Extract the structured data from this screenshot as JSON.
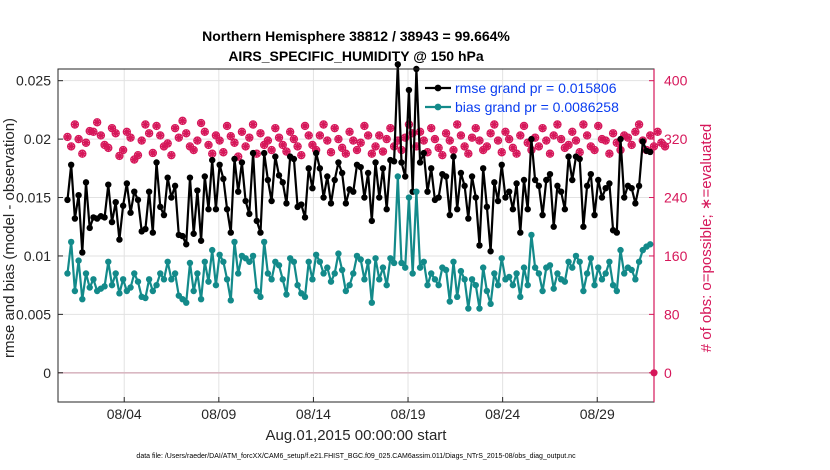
{
  "chart_data": {
    "type": "line",
    "title": "Northern Hemisphere 38812 / 38943 = 99.664%",
    "subtitle": "AIRS_SPECIFIC_HUMIDITY @ 150 hPa",
    "xlabel": "Aug.01,2015 00:00:00 start",
    "ylabel": "rmse and bias (model - observation)",
    "ylabel_right": "# of obs: o=possible; ∗=evaluated",
    "xlim": [
      0.5,
      32.0
    ],
    "ylim": [
      -0.0025,
      0.026
    ],
    "ylim_right": [
      -40,
      416
    ],
    "x_ticks": [
      {
        "x": 4,
        "label": "08/04"
      },
      {
        "x": 9,
        "label": "08/09"
      },
      {
        "x": 14,
        "label": "08/14"
      },
      {
        "x": 19,
        "label": "08/19"
      },
      {
        "x": 24,
        "label": "08/24"
      },
      {
        "x": 29,
        "label": "08/29"
      }
    ],
    "y_ticks": [
      {
        "v": 0,
        "label": "0"
      },
      {
        "v": 0.005,
        "label": "0.005"
      },
      {
        "v": 0.01,
        "label": "0.01"
      },
      {
        "v": 0.015,
        "label": "0.015"
      },
      {
        "v": 0.02,
        "label": "0.02"
      },
      {
        "v": 0.025,
        "label": "0.025"
      }
    ],
    "y_ticks_right": [
      {
        "v": 0,
        "label": "0"
      },
      {
        "v": 80,
        "label": "80"
      },
      {
        "v": 160,
        "label": "160"
      },
      {
        "v": 240,
        "label": "240"
      },
      {
        "v": 320,
        "label": "320"
      },
      {
        "v": 400,
        "label": "400"
      }
    ],
    "grid": true,
    "legend_position": "top-right",
    "series": [
      {
        "name": "rmse grand pr = 0.015806",
        "color": "#000000",
        "values": [
          0.0148,
          0.0178,
          0.0132,
          0.0152,
          0.0103,
          0.0163,
          0.0124,
          0.0133,
          0.0132,
          0.0134,
          0.0133,
          0.0161,
          0.0129,
          0.0146,
          0.0114,
          0.0143,
          0.0162,
          0.0137,
          0.0155,
          0.0148,
          0.0121,
          0.0123,
          0.0155,
          0.012,
          0.018,
          0.0142,
          0.0135,
          0.0167,
          0.015,
          0.016,
          0.0118,
          0.0117,
          0.011,
          0.0167,
          0.0119,
          0.0156,
          0.0113,
          0.0168,
          0.014,
          0.0182,
          0.014,
          0.0178,
          0.0166,
          0.014,
          0.012,
          0.0183,
          0.0155,
          0.018,
          0.0147,
          0.0136,
          0.0188,
          0.013,
          0.012,
          0.0188,
          0.0165,
          0.0147,
          0.0185,
          0.0169,
          0.0163,
          0.0145,
          0.0185,
          0.0183,
          0.0142,
          0.0144,
          0.0133,
          0.0175,
          0.0158,
          0.0188,
          0.0175,
          0.015,
          0.0168,
          0.0145,
          0.0165,
          0.018,
          0.0171,
          0.0145,
          0.0157,
          0.0155,
          0.0178,
          0.0176,
          0.015,
          0.0171,
          0.013,
          0.018,
          0.015,
          0.0175,
          0.014,
          0.0182,
          0.0181,
          0.0264,
          0.018,
          0.0168,
          0.0242,
          0.0155,
          0.026,
          0.018,
          0.0188,
          0.0155,
          0.0175,
          0.0148,
          0.015,
          0.017,
          0.0168,
          0.0135,
          0.0185,
          0.014,
          0.0171,
          0.016,
          0.0132,
          0.0168,
          0.015,
          0.0109,
          0.0175,
          0.0142,
          0.0104,
          0.0163,
          0.0147,
          0.0178,
          0.015,
          0.0155,
          0.014,
          0.0162,
          0.012,
          0.0165,
          0.014,
          0.02,
          0.0165,
          0.016,
          0.0135,
          0.0165,
          0.017,
          0.0125,
          0.016,
          0.0155,
          0.014,
          0.0185,
          0.0165,
          0.0185,
          0.0183,
          0.0125,
          0.016,
          0.017,
          0.0135,
          0.0165,
          0.015,
          0.0158,
          0.0162,
          0.0122,
          0.012,
          0.02,
          0.015,
          0.016,
          0.0158,
          0.0145,
          0.016,
          0.0198,
          0.019,
          0.0189
        ]
      },
      {
        "name": "bias grand pr = 0.0086258",
        "color": "#138a8a",
        "values": [
          0.0085,
          0.0112,
          0.007,
          0.0096,
          0.0063,
          0.0085,
          0.0073,
          0.008,
          0.007,
          0.0072,
          0.0074,
          0.0095,
          0.0075,
          0.0085,
          0.0068,
          0.008,
          0.007,
          0.0073,
          0.0085,
          0.0078,
          0.0065,
          0.0064,
          0.008,
          0.007,
          0.0075,
          0.0085,
          0.008,
          0.0095,
          0.008,
          0.0085,
          0.0066,
          0.0063,
          0.006,
          0.0094,
          0.007,
          0.0085,
          0.0063,
          0.0095,
          0.0078,
          0.0105,
          0.0075,
          0.0101,
          0.0095,
          0.008,
          0.0062,
          0.0112,
          0.0085,
          0.01,
          0.0098,
          0.0095,
          0.01,
          0.007,
          0.0065,
          0.0112,
          0.0085,
          0.008,
          0.0095,
          0.0092,
          0.008,
          0.0067,
          0.0098,
          0.0095,
          0.0075,
          0.0068,
          0.0065,
          0.0095,
          0.008,
          0.0101,
          0.0095,
          0.0085,
          0.009,
          0.0078,
          0.0085,
          0.0102,
          0.0088,
          0.007,
          0.0075,
          0.0085,
          0.01,
          0.0097,
          0.008,
          0.0095,
          0.006,
          0.0098,
          0.008,
          0.009,
          0.0075,
          0.0098,
          0.0094,
          0.0168,
          0.0094,
          0.009,
          0.015,
          0.0085,
          0.0155,
          0.009,
          0.0095,
          0.0075,
          0.0085,
          0.008,
          0.0075,
          0.009,
          0.0088,
          0.0061,
          0.0095,
          0.0065,
          0.0087,
          0.008,
          0.0055,
          0.008,
          0.0075,
          0.0055,
          0.009,
          0.007,
          0.0059,
          0.0085,
          0.0075,
          0.0098,
          0.008,
          0.0082,
          0.0075,
          0.0085,
          0.0065,
          0.009,
          0.0075,
          0.0118,
          0.009,
          0.0085,
          0.007,
          0.009,
          0.0092,
          0.0072,
          0.0085,
          0.008,
          0.0078,
          0.0095,
          0.009,
          0.01,
          0.0095,
          0.007,
          0.0085,
          0.0098,
          0.0075,
          0.009,
          0.008,
          0.0085,
          0.0095,
          0.0075,
          0.007,
          0.0105,
          0.0085,
          0.009,
          0.0088,
          0.008,
          0.0095,
          0.0105,
          0.0108,
          0.011
        ]
      },
      {
        "name": "obs possible",
        "color": "#d6175a",
        "axis": "right",
        "values": [
          323,
          310,
          340,
          320,
          300,
          315,
          331,
          330,
          343,
          325,
          312,
          308,
          335,
          328,
          297,
          305,
          330,
          322,
          292,
          298,
          318,
          340,
          328,
          301,
          338,
          325,
          310,
          314,
          298,
          335,
          322,
          345,
          328,
          310,
          305,
          318,
          342,
          330,
          312,
          300,
          325,
          318,
          302,
          338,
          324,
          315,
          296,
          330,
          310,
          322,
          340,
          300,
          328,
          312,
          318,
          305,
          335,
          322,
          312,
          303,
          330,
          320,
          310,
          298,
          338,
          325,
          312,
          305,
          325,
          340,
          318,
          302,
          335,
          320,
          308,
          300,
          330,
          318,
          305,
          315,
          338,
          325,
          300,
          310,
          325,
          303,
          320,
          335,
          310,
          318,
          305,
          322,
          340,
          328,
          310,
          330,
          318,
          302,
          335,
          320,
          308,
          298,
          328,
          318,
          305,
          340,
          325,
          310,
          300,
          322,
          335,
          318,
          305,
          310,
          328,
          340,
          318,
          302,
          330,
          320,
          308,
          300,
          325,
          338,
          315,
          305,
          322,
          310,
          335,
          318,
          300,
          325,
          340,
          320,
          308,
          312,
          330,
          318,
          302,
          340,
          325,
          310,
          305,
          338,
          320,
          318,
          300,
          328,
          315,
          305,
          325,
          322,
          312,
          330,
          340,
          318,
          305,
          325,
          310,
          330,
          315,
          310
        ]
      },
      {
        "name": "obs evaluated",
        "color": "#d6175a",
        "axis": "right",
        "values": [
          323,
          310,
          340,
          320,
          300,
          315,
          331,
          330,
          343,
          325,
          312,
          308,
          335,
          328,
          297,
          305,
          330,
          322,
          292,
          298,
          318,
          340,
          328,
          301,
          338,
          325,
          310,
          314,
          298,
          335,
          322,
          345,
          328,
          310,
          305,
          318,
          342,
          330,
          312,
          300,
          325,
          318,
          302,
          338,
          324,
          315,
          296,
          330,
          310,
          322,
          340,
          300,
          328,
          312,
          318,
          305,
          335,
          322,
          312,
          303,
          330,
          320,
          310,
          298,
          338,
          325,
          312,
          305,
          325,
          340,
          318,
          302,
          335,
          320,
          308,
          300,
          330,
          318,
          305,
          315,
          338,
          325,
          300,
          310,
          325,
          303,
          320,
          335,
          310,
          318,
          305,
          322,
          340,
          328,
          310,
          330,
          318,
          302,
          335,
          320,
          308,
          298,
          328,
          318,
          305,
          340,
          325,
          310,
          300,
          322,
          335,
          318,
          305,
          310,
          328,
          340,
          318,
          302,
          330,
          320,
          308,
          300,
          325,
          338,
          315,
          305,
          322,
          310,
          335,
          318,
          300,
          325,
          340,
          320,
          308,
          312,
          330,
          318,
          302,
          340,
          325,
          310,
          305,
          338,
          320,
          318,
          300,
          328,
          315,
          305,
          325,
          322,
          312,
          330,
          340,
          318,
          305,
          325,
          310,
          330,
          315,
          310
        ]
      }
    ],
    "footnote": "data file: /Users/raeder/DAI/ATM_forcXX/CAM6_setup/f.e21.FHIST_BGC.f09_025.CAM6assim.011/Diags_NTrS_2015-08/obs_diag_output.nc"
  }
}
